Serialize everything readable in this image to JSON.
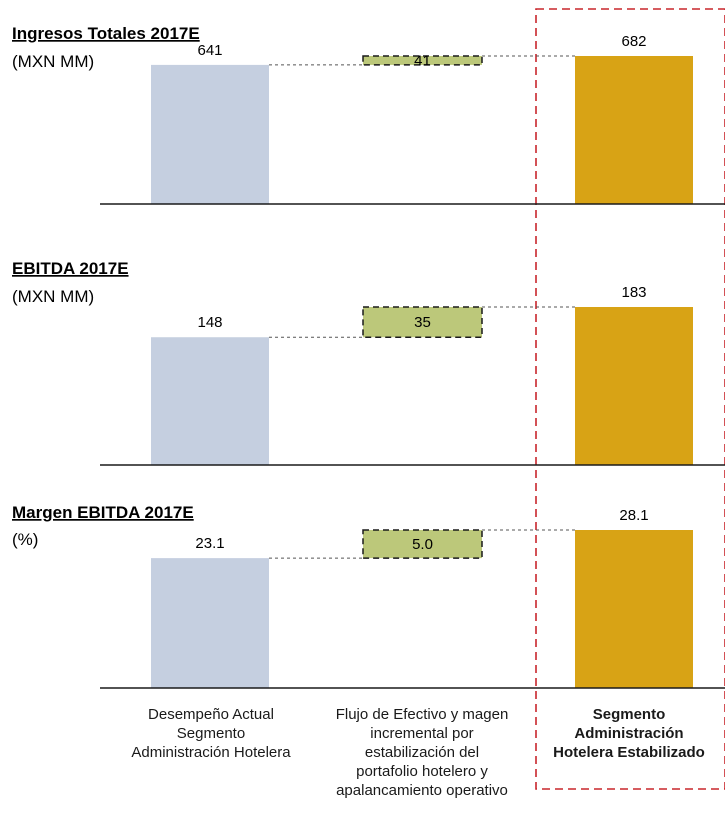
{
  "chart_data": [
    {
      "type": "bar",
      "title": "Ingresos Totales 2017E",
      "subtitle": "(MXN MM)",
      "values": [
        641,
        41,
        682
      ],
      "value_labels": [
        "641",
        "41",
        "682"
      ],
      "ylim": [
        0,
        682
      ]
    },
    {
      "type": "bar",
      "title": "EBITDA 2017E",
      "subtitle": "(MXN MM)",
      "values": [
        148,
        35,
        183
      ],
      "value_labels": [
        "148",
        "35",
        "183"
      ],
      "ylim": [
        0,
        183
      ]
    },
    {
      "type": "bar",
      "title": "Margen EBITDA 2017E",
      "subtitle": "(%)",
      "values": [
        23.1,
        5.0,
        28.1
      ],
      "value_labels": [
        "23.1",
        "5.0",
        "28.1"
      ],
      "ylim": [
        0,
        28.1
      ]
    }
  ],
  "categories": [
    "Desempeño Actual Segmento Administración Hotelera",
    "Flujo de Efectivo y magen incremental por estabilización del portafolio hotelero y apalancamiento operativo",
    "Segmento Administración Hotelera Estabilizado"
  ],
  "category_lines": [
    [
      "Desempeño Actual",
      "Segmento",
      "Administración Hotelera"
    ],
    [
      "Flujo de Efectivo y magen",
      "incremental por",
      "estabilización del",
      "portafolio hotelero y",
      "apalancamiento operativo"
    ],
    [
      "Segmento",
      "Administración",
      "Hotelera Estabilizado"
    ]
  ],
  "colors": {
    "actual": "#c5cfe0",
    "increment": "#bcc87a",
    "stabilized": "#d8a315",
    "highlight_border": "#c8262c",
    "axis": "#1a1a1a"
  }
}
